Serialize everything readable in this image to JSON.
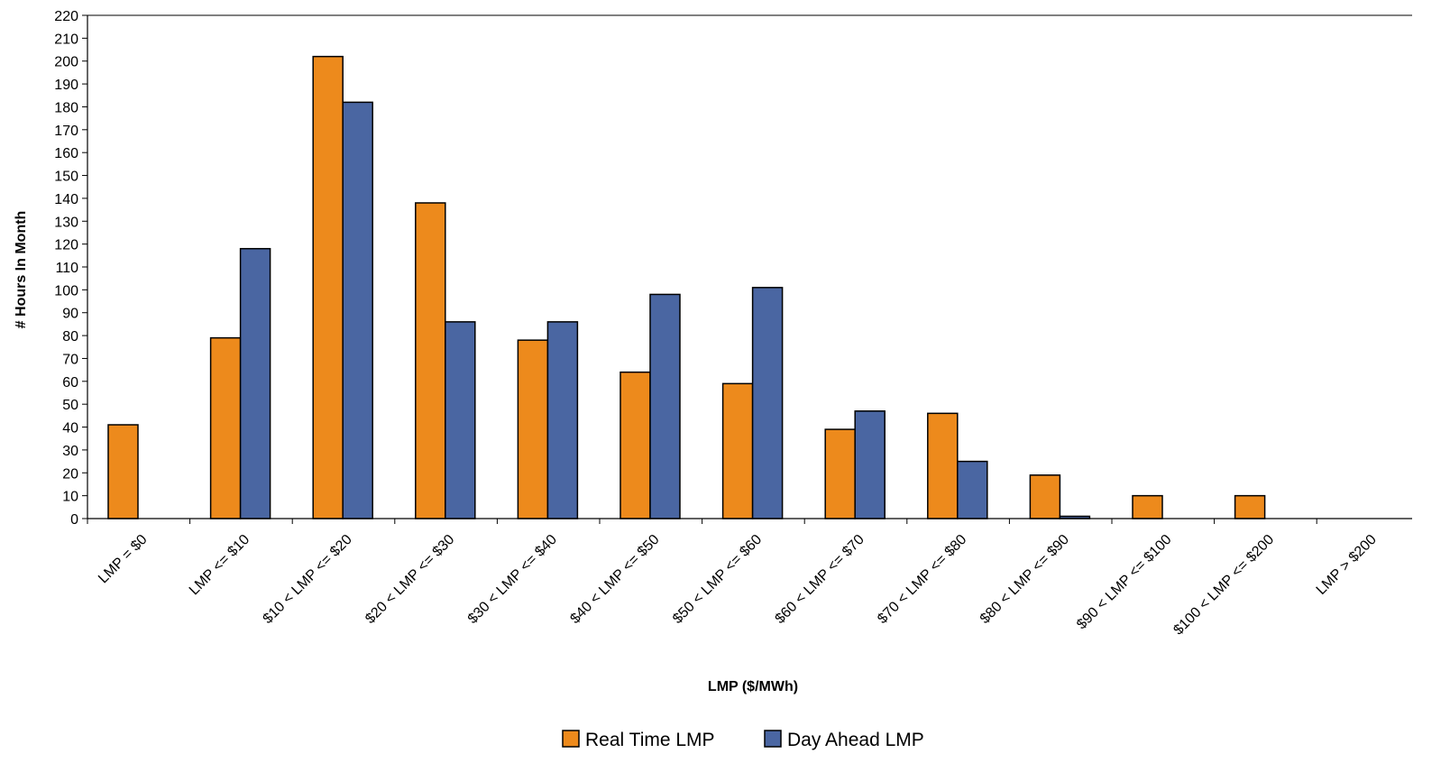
{
  "chart_data": {
    "type": "bar",
    "title": "",
    "xlabel": "LMP ($/MWh)",
    "ylabel": "# Hours In Month",
    "ylim": [
      0,
      220
    ],
    "y_ticks": [
      0,
      10,
      20,
      30,
      40,
      50,
      60,
      70,
      80,
      90,
      100,
      110,
      120,
      130,
      140,
      150,
      160,
      170,
      180,
      190,
      200,
      210,
      220
    ],
    "grid": false,
    "legend_position": "bottom-center",
    "categories": [
      "LMP = $0",
      "LMP <= $10",
      "$10 < LMP <= $20",
      "$20 < LMP <= $30",
      "$30 < LMP <= $40",
      "$40 < LMP <= $50",
      "$50 < LMP <= $60",
      "$60 < LMP <= $70",
      "$70 < LMP <= $80",
      "$80 < LMP <= $90",
      "$90 < LMP <= $100",
      "$100 < LMP <= $200",
      "LMP > $200"
    ],
    "series": [
      {
        "name": "Real Time LMP",
        "color": "#ED8A1C",
        "values": [
          41,
          79,
          202,
          138,
          78,
          64,
          59,
          39,
          46,
          19,
          10,
          10,
          0
        ]
      },
      {
        "name": "Day Ahead LMP",
        "color": "#4A66A2",
        "values": [
          0,
          118,
          182,
          86,
          86,
          98,
          101,
          47,
          25,
          1,
          0,
          0,
          0
        ]
      }
    ]
  }
}
